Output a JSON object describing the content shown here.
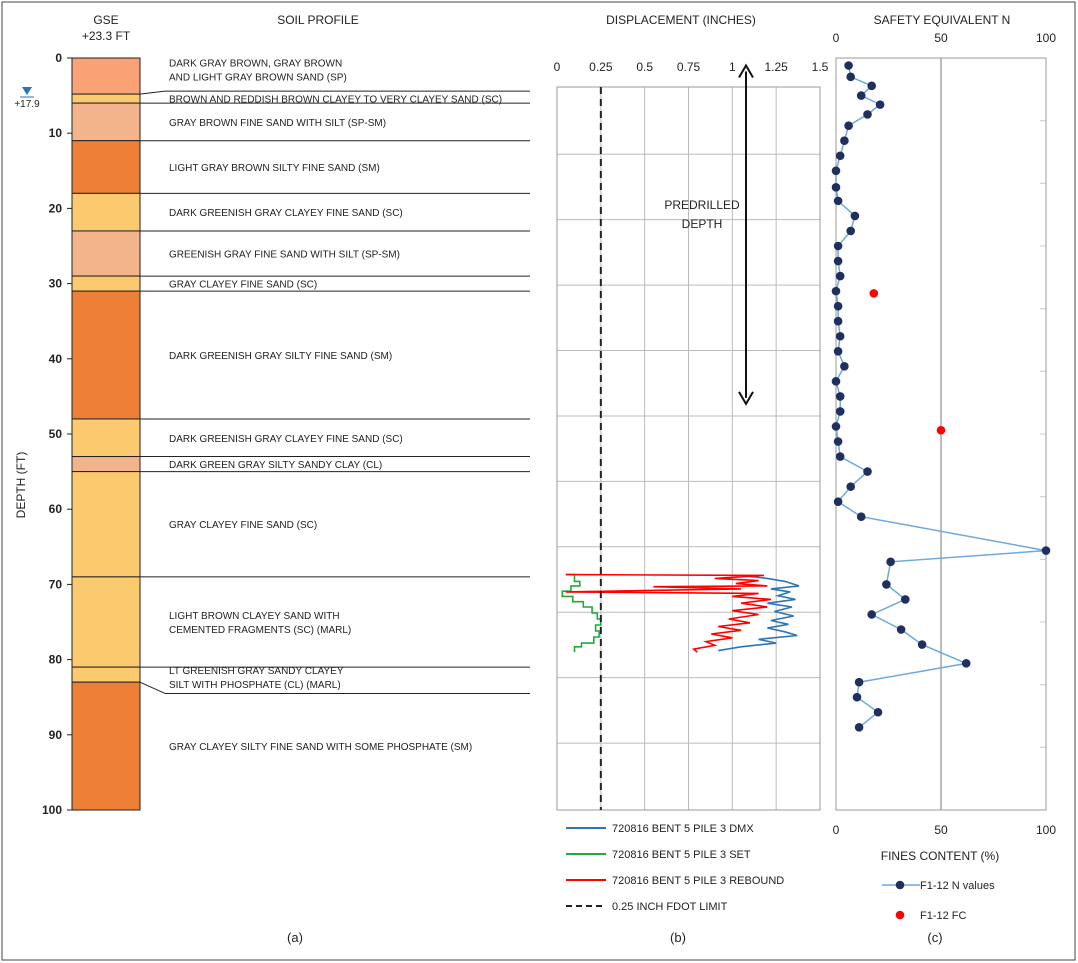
{
  "panel_labels": [
    "(a)",
    "(b)",
    "(c)"
  ],
  "chart_data": [
    {
      "type": "table",
      "title": "SOIL PROFILE",
      "column_header_1": "GSE",
      "column_header_2": "+23.3 FT",
      "ylabel": "DEPTH (FT)",
      "ylim": [
        0,
        100
      ],
      "yticks": [
        "0",
        "10",
        "20",
        "30",
        "40",
        "50",
        "60",
        "70",
        "80",
        "90",
        "100"
      ],
      "water_table_label": "+17.9",
      "water_table_depth": 5.4,
      "layers": [
        {
          "top": 0,
          "bottom": 4.8,
          "color": "#f9a275",
          "text": [
            "DARK GRAY BROWN, GRAY BROWN",
            "AND LIGHT GRAY BROWN SAND (SP)"
          ]
        },
        {
          "top": 4.8,
          "bottom": 6.0,
          "color": "#fbc96e",
          "text": [
            "BROWN AND REDDISH BROWN CLAYEY TO VERY CLAYEY SAND (SC)"
          ]
        },
        {
          "top": 6.0,
          "bottom": 11.0,
          "color": "#f3b48b",
          "text": [
            "GRAY BROWN FINE SAND WITH SILT (SP-SM)"
          ]
        },
        {
          "top": 11.0,
          "bottom": 18.0,
          "color": "#ed7f36",
          "text": [
            "LIGHT GRAY BROWN SILTY FINE SAND (SM)"
          ]
        },
        {
          "top": 18.0,
          "bottom": 23.0,
          "color": "#fbc96e",
          "text": [
            "DARK GREENISH GRAY CLAYEY FINE SAND (SC)"
          ]
        },
        {
          "top": 23.0,
          "bottom": 29.0,
          "color": "#f3b48b",
          "text": [
            "GREENISH GRAY FINE SAND WITH SILT (SP-SM)"
          ]
        },
        {
          "top": 29.0,
          "bottom": 31.0,
          "color": "#fbc96e",
          "text": [
            "GRAY CLAYEY FINE SAND (SC)"
          ]
        },
        {
          "top": 31.0,
          "bottom": 48.0,
          "color": "#ed7f36",
          "text": [
            "DARK GREENISH GRAY SILTY FINE SAND (SM)"
          ]
        },
        {
          "top": 48.0,
          "bottom": 53.0,
          "color": "#fbc96e",
          "text": [
            "DARK GREENISH GRAY CLAYEY FINE SAND (SC)"
          ]
        },
        {
          "top": 53.0,
          "bottom": 55.0,
          "color": "#f3b48b",
          "text": [
            "DARK GREEN GRAY SILTY SANDY CLAY (CL)"
          ]
        },
        {
          "top": 55.0,
          "bottom": 69.0,
          "color": "#fbc96e",
          "text": [
            "GRAY CLAYEY FINE SAND (SC)"
          ]
        },
        {
          "top": 69.0,
          "bottom": 81.0,
          "color": "#fbc96e",
          "text": [
            "LIGHT BROWN CLAYEY SAND WITH",
            "CEMENTED FRAGMENTS (SC) (MARL)"
          ]
        },
        {
          "top": 81.0,
          "bottom": 83.0,
          "color": "#fbc96e",
          "text": [
            "LT GREENISH GRAY SANDY CLAYEY",
            "SILT WITH PHOSPHATE (CL) (MARL)"
          ]
        },
        {
          "top": 83.0,
          "bottom": 100.0,
          "color": "#ed7f36",
          "text": [
            "GRAY CLAYEY SILTY FINE SAND WITH SOME PHOSPHATE (SM)"
          ]
        }
      ]
    },
    {
      "type": "line",
      "title": "DISPLACEMENT (INCHES)",
      "xlim": [
        0,
        1.5
      ],
      "xticks": [
        "0",
        "0.25",
        "0.5",
        "0.75",
        "1",
        "1.25",
        "1.5"
      ],
      "ylim": [
        0,
        100
      ],
      "annotation": [
        "PREDRILLED",
        "DEPTH"
      ],
      "predrilled_range": [
        1,
        46
      ],
      "limit": {
        "name": "0.25 INCH FDOT LIMIT",
        "x": 0.25,
        "color": "#222222"
      },
      "series": [
        {
          "name": "720816 BENT 5 PILE 3 DMX",
          "color": "#2e75b6",
          "points": [
            [
              1.05,
              68.8
            ],
            [
              1.2,
              69.2
            ],
            [
              1.3,
              69.6
            ],
            [
              1.38,
              70.2
            ],
            [
              1.22,
              70.6
            ],
            [
              1.33,
              71.0
            ],
            [
              1.26,
              71.5
            ],
            [
              1.36,
              72.0
            ],
            [
              1.2,
              72.5
            ],
            [
              1.34,
              73.0
            ],
            [
              1.24,
              73.6
            ],
            [
              1.35,
              74.2
            ],
            [
              1.22,
              74.8
            ],
            [
              1.32,
              75.3
            ],
            [
              1.2,
              75.8
            ],
            [
              1.3,
              76.3
            ],
            [
              1.37,
              76.8
            ],
            [
              1.15,
              77.3
            ],
            [
              1.25,
              77.8
            ],
            [
              1.05,
              78.3
            ],
            [
              0.92,
              78.8
            ]
          ]
        },
        {
          "name": "720816 BENT 5 PILE 3 SET",
          "color": "#1faa3c",
          "points": [
            [
              0.05,
              68.7
            ],
            [
              0.1,
              68.7
            ],
            [
              0.1,
              69.6
            ],
            [
              0.13,
              69.6
            ],
            [
              0.13,
              70.2
            ],
            [
              0.08,
              70.2
            ],
            [
              0.08,
              70.9
            ],
            [
              0.03,
              70.9
            ],
            [
              0.03,
              71.6
            ],
            [
              0.09,
              71.6
            ],
            [
              0.09,
              72.3
            ],
            [
              0.15,
              72.3
            ],
            [
              0.15,
              73.0
            ],
            [
              0.2,
              73.0
            ],
            [
              0.2,
              73.8
            ],
            [
              0.23,
              73.8
            ],
            [
              0.23,
              74.6
            ],
            [
              0.25,
              74.6
            ],
            [
              0.25,
              75.4
            ],
            [
              0.22,
              75.4
            ],
            [
              0.22,
              76.2
            ],
            [
              0.24,
              76.2
            ],
            [
              0.24,
              77.0
            ],
            [
              0.21,
              77.0
            ],
            [
              0.21,
              77.8
            ],
            [
              0.14,
              77.8
            ],
            [
              0.14,
              78.3
            ],
            [
              0.1,
              78.3
            ],
            [
              0.1,
              79.0
            ]
          ]
        },
        {
          "name": "720816 BENT 5 PILE 3 REBOUND",
          "color": "#ff0000",
          "points": [
            [
              0.05,
              68.7
            ],
            [
              1.18,
              68.8
            ],
            [
              0.9,
              69.2
            ],
            [
              1.15,
              69.5
            ],
            [
              1.02,
              69.9
            ],
            [
              1.2,
              70.2
            ],
            [
              0.55,
              70.3
            ],
            [
              1.05,
              70.6
            ],
            [
              0.05,
              71.0
            ],
            [
              1.15,
              71.2
            ],
            [
              1.0,
              71.6
            ],
            [
              1.22,
              72.0
            ],
            [
              1.05,
              72.5
            ],
            [
              1.2,
              73.0
            ],
            [
              1.0,
              73.5
            ],
            [
              1.15,
              74.0
            ],
            [
              0.98,
              74.6
            ],
            [
              1.1,
              75.1
            ],
            [
              0.92,
              75.6
            ],
            [
              1.05,
              76.1
            ],
            [
              0.88,
              76.6
            ],
            [
              1.0,
              77.1
            ],
            [
              0.85,
              77.6
            ],
            [
              0.9,
              78.1
            ],
            [
              0.78,
              78.6
            ],
            [
              0.8,
              79.0
            ]
          ]
        }
      ]
    },
    {
      "type": "scatter",
      "title": "SAFETY EQUIVALENT N",
      "xlabel": "FINES CONTENT (%)",
      "xlim": [
        0,
        100
      ],
      "xticks": [
        "0",
        "50",
        "100"
      ],
      "ylim": [
        0,
        100
      ],
      "series": [
        {
          "name": "F1-12 N values",
          "color": "#1f2f5e",
          "line_color": "#6fa8dc",
          "points": [
            [
              6,
              1
            ],
            [
              7,
              2.5
            ],
            [
              17,
              3.7
            ],
            [
              12,
              5
            ],
            [
              21,
              6.2
            ],
            [
              15,
              7.5
            ],
            [
              6,
              9
            ],
            [
              4,
              11
            ],
            [
              2,
              13
            ],
            [
              0,
              15
            ],
            [
              0,
              17.2
            ],
            [
              1,
              19
            ],
            [
              9,
              21
            ],
            [
              7,
              23
            ],
            [
              1,
              25
            ],
            [
              1,
              27
            ],
            [
              2,
              29
            ],
            [
              0,
              31
            ],
            [
              1,
              33
            ],
            [
              1,
              35
            ],
            [
              2,
              37
            ],
            [
              1,
              39
            ],
            [
              4,
              41
            ],
            [
              0,
              43
            ],
            [
              2,
              45
            ],
            [
              2,
              47
            ],
            [
              0,
              49
            ],
            [
              1,
              51
            ],
            [
              2,
              53
            ],
            [
              15,
              55
            ],
            [
              7,
              57
            ],
            [
              1,
              59
            ],
            [
              12,
              61
            ],
            [
              100,
              65.5
            ],
            [
              26,
              67
            ],
            [
              24,
              70
            ],
            [
              33,
              72
            ],
            [
              17,
              74
            ],
            [
              31,
              76
            ],
            [
              41,
              78
            ],
            [
              62,
              80.5
            ],
            [
              11,
              83
            ],
            [
              10,
              85
            ],
            [
              20,
              87
            ],
            [
              11,
              89
            ]
          ]
        },
        {
          "name": "F1-12 FC",
          "color": "#ff0000",
          "points": [
            [
              18,
              31.3
            ],
            [
              50,
              49.5
            ]
          ]
        }
      ]
    }
  ]
}
